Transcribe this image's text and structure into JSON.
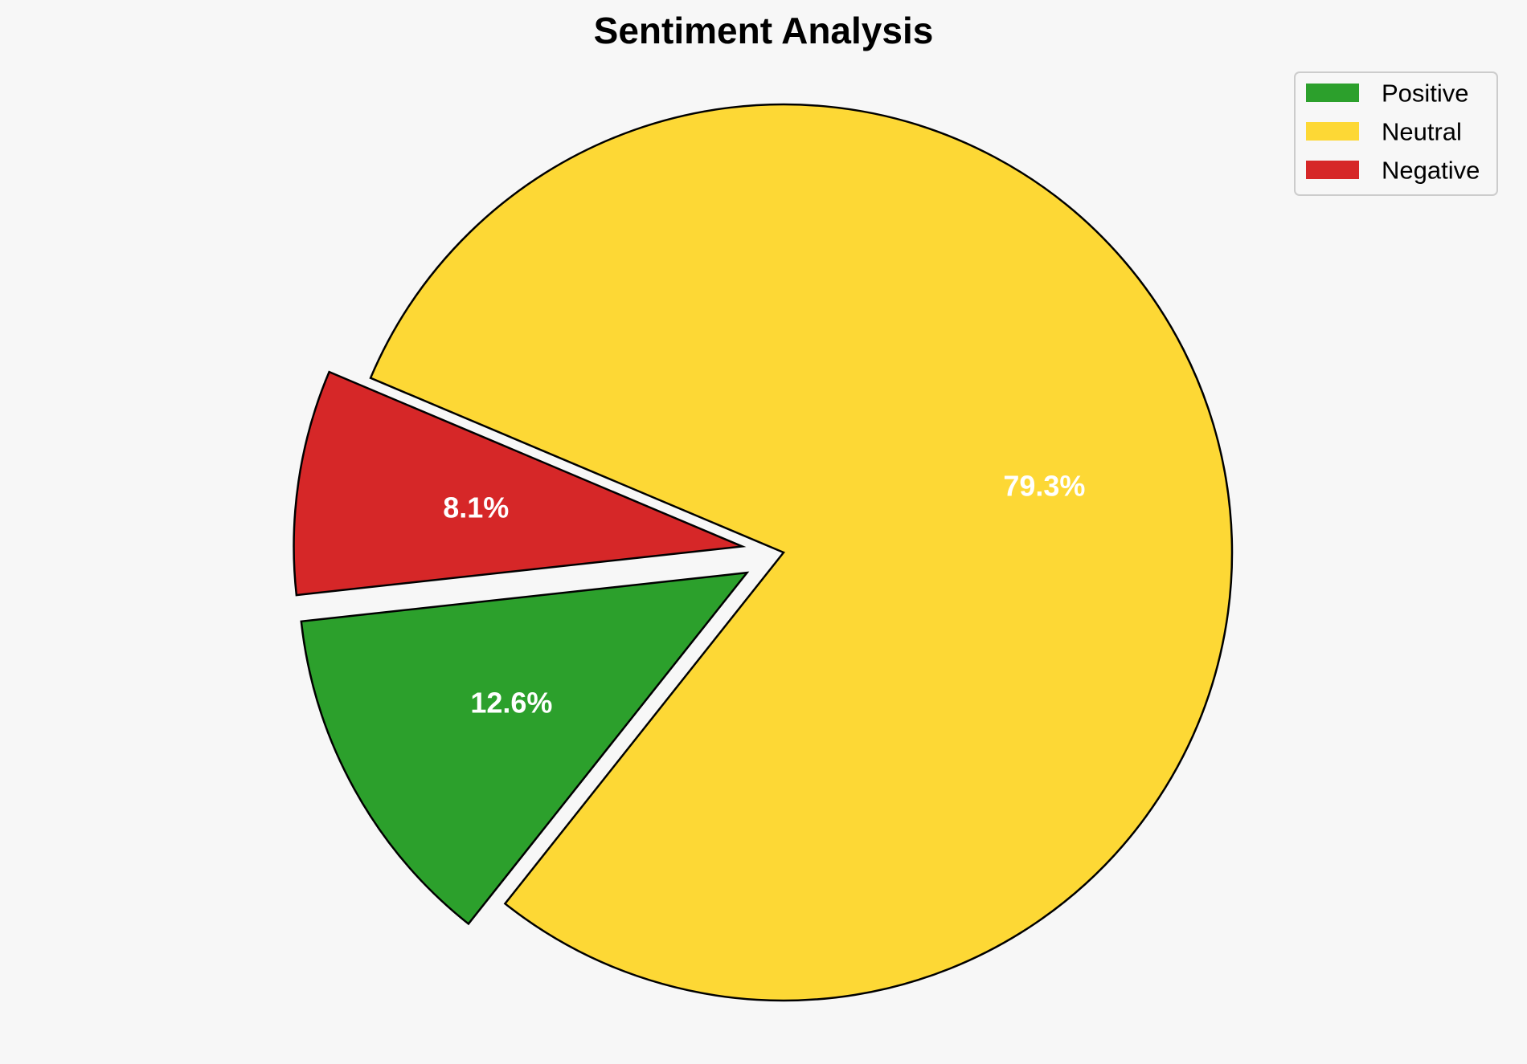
{
  "chart_data": {
    "type": "pie",
    "title": "Sentiment Analysis",
    "categories": [
      "Positive",
      "Neutral",
      "Negative"
    ],
    "values": [
      12.6,
      79.3,
      8.1
    ],
    "value_labels": [
      "12.6%",
      "79.3%",
      "8.1%"
    ],
    "colors": [
      "#2ca02c",
      "#fdd835",
      "#d62728"
    ],
    "exploded": [
      true,
      false,
      true
    ],
    "legend": {
      "position": "top-right",
      "entries": [
        "Positive",
        "Neutral",
        "Negative"
      ]
    },
    "background": "#f7f7f7",
    "edge_color": "#000000"
  }
}
